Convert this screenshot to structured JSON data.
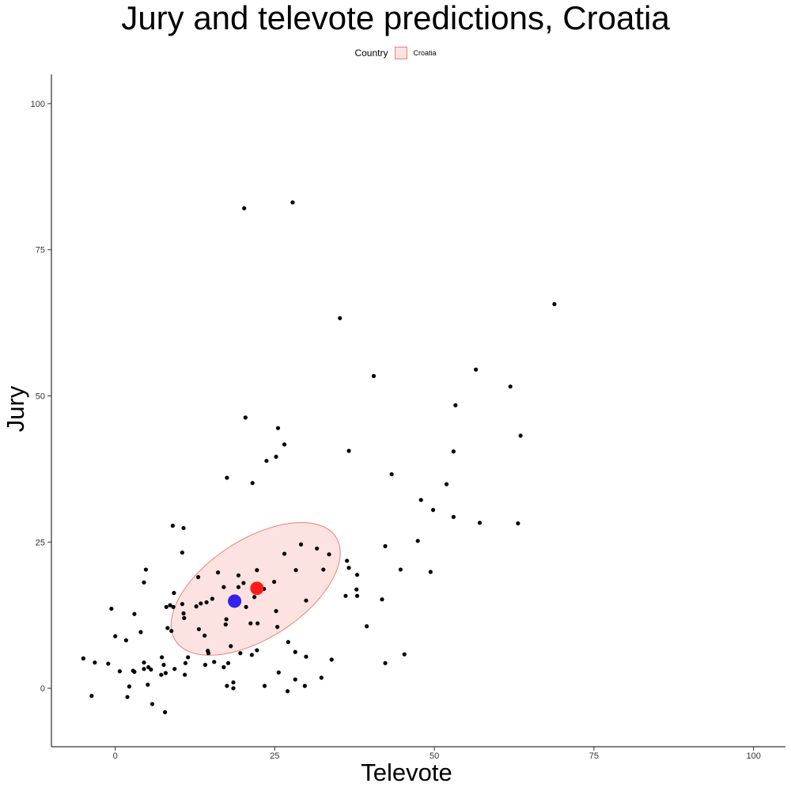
{
  "chart_data": {
    "type": "scatter",
    "title": "Jury and televote predictions, Croatia",
    "xlabel": "Televote",
    "ylabel": "Jury",
    "xlim": [
      -10,
      105
    ],
    "ylim": [
      -10,
      105
    ],
    "x_ticks": [
      0,
      25,
      50,
      75,
      100
    ],
    "y_ticks": [
      0,
      25,
      50,
      75,
      100
    ],
    "grid": false,
    "legend": {
      "title": "Country",
      "placement": "top",
      "entries": [
        "Croatia"
      ]
    },
    "colors": {
      "ellipse_fill": "#fde2e2",
      "ellipse_stroke": "#f08070",
      "points": "#000000",
      "highlight_red": "#ff1a1a",
      "highlight_blue": "#3322ee"
    },
    "ellipse": {
      "center": [
        22,
        17
      ],
      "semi_major": 15.4,
      "semi_minor": 8.2,
      "angle_deg": 37
    },
    "highlight_points": [
      {
        "x": 22.2,
        "y": 17.1,
        "color": "#ff1a1a"
      },
      {
        "x": 18.7,
        "y": 14.9,
        "color": "#3322ee"
      }
    ],
    "points": [
      [
        20.2,
        82.1
      ],
      [
        27.8,
        83.1
      ],
      [
        35.2,
        63.3
      ],
      [
        68.8,
        65.7
      ],
      [
        40.5,
        53.4
      ],
      [
        56.5,
        54.5
      ],
      [
        61.9,
        51.6
      ],
      [
        53.3,
        48.4
      ],
      [
        63.5,
        43.2
      ],
      [
        20.4,
        46.3
      ],
      [
        25.5,
        44.5
      ],
      [
        26.5,
        41.7
      ],
      [
        23.7,
        38.9
      ],
      [
        25.2,
        39.6
      ],
      [
        36.6,
        40.6
      ],
      [
        53.0,
        40.5
      ],
      [
        17.5,
        36.0
      ],
      [
        21.5,
        35.1
      ],
      [
        43.3,
        36.6
      ],
      [
        51.9,
        34.9
      ],
      [
        47.9,
        32.2
      ],
      [
        49.8,
        30.5
      ],
      [
        53.0,
        29.3
      ],
      [
        57.1,
        28.3
      ],
      [
        63.1,
        28.2
      ],
      [
        9.0,
        27.8
      ],
      [
        10.7,
        27.4
      ],
      [
        47.4,
        25.2
      ],
      [
        42.3,
        24.3
      ],
      [
        29.1,
        24.6
      ],
      [
        31.6,
        23.9
      ],
      [
        26.5,
        23.0
      ],
      [
        33.5,
        22.9
      ],
      [
        10.5,
        23.2
      ],
      [
        36.3,
        21.8
      ],
      [
        36.6,
        20.6
      ],
      [
        37.9,
        19.4
      ],
      [
        44.7,
        20.3
      ],
      [
        49.4,
        19.9
      ],
      [
        32.6,
        20.3
      ],
      [
        28.3,
        20.2
      ],
      [
        22.2,
        20.2
      ],
      [
        4.8,
        20.3
      ],
      [
        16.1,
        19.8
      ],
      [
        19.3,
        19.3
      ],
      [
        13.0,
        19.0
      ],
      [
        20.1,
        18.0
      ],
      [
        24.9,
        18.2
      ],
      [
        4.5,
        18.1
      ],
      [
        19.3,
        17.3
      ],
      [
        23.3,
        17.0
      ],
      [
        14.3,
        14.7
      ],
      [
        13.4,
        14.5
      ],
      [
        17.0,
        17.3
      ],
      [
        37.8,
        16.9
      ],
      [
        9.2,
        16.3
      ],
      [
        -0.6,
        13.6
      ],
      [
        3.0,
        12.7
      ],
      [
        10.5,
        14.4
      ],
      [
        12.7,
        14.0
      ],
      [
        15.2,
        15.3
      ],
      [
        21.8,
        15.6
      ],
      [
        36.1,
        15.8
      ],
      [
        37.9,
        15.8
      ],
      [
        41.8,
        15.2
      ],
      [
        29.9,
        15.0
      ],
      [
        8.0,
        13.9
      ],
      [
        8.6,
        14.2
      ],
      [
        9.1,
        13.9
      ],
      [
        10.7,
        12.8
      ],
      [
        10.8,
        12.0
      ],
      [
        20.5,
        13.9
      ],
      [
        25.2,
        13.2
      ],
      [
        17.4,
        11.8
      ],
      [
        17.3,
        10.9
      ],
      [
        21.2,
        11.1
      ],
      [
        22.3,
        11.1
      ],
      [
        8.2,
        10.3
      ],
      [
        8.8,
        9.8
      ],
      [
        13.1,
        10.1
      ],
      [
        14.0,
        9.0
      ],
      [
        0.0,
        8.9
      ],
      [
        1.7,
        8.2
      ],
      [
        4.0,
        9.6
      ],
      [
        39.4,
        10.6
      ],
      [
        25.4,
        10.5
      ],
      [
        27.1,
        7.9
      ],
      [
        18.1,
        7.2
      ],
      [
        14.5,
        6.4
      ],
      [
        19.6,
        6.0
      ],
      [
        14.6,
        6.0
      ],
      [
        11.4,
        5.3
      ],
      [
        21.4,
        5.7
      ],
      [
        22.2,
        6.5
      ],
      [
        28.2,
        6.2
      ],
      [
        29.9,
        5.4
      ],
      [
        45.3,
        5.8
      ],
      [
        33.9,
        4.9
      ],
      [
        42.3,
        4.3
      ],
      [
        -5.0,
        5.1
      ],
      [
        -3.2,
        4.4
      ],
      [
        -1.1,
        4.2
      ],
      [
        11.0,
        4.3
      ],
      [
        15.5,
        4.5
      ],
      [
        7.3,
        5.3
      ],
      [
        4.5,
        4.4
      ],
      [
        4.5,
        3.3
      ],
      [
        5.2,
        3.6
      ],
      [
        5.6,
        3.2
      ],
      [
        7.6,
        4.0
      ],
      [
        9.3,
        3.3
      ],
      [
        14.1,
        4.0
      ],
      [
        17.0,
        3.6
      ],
      [
        17.7,
        4.3
      ],
      [
        0.7,
        2.9
      ],
      [
        2.8,
        3.0
      ],
      [
        3.0,
        2.8
      ],
      [
        7.2,
        2.3
      ],
      [
        7.9,
        2.6
      ],
      [
        10.9,
        2.3
      ],
      [
        25.6,
        2.7
      ],
      [
        32.3,
        1.8
      ],
      [
        28.2,
        1.5
      ],
      [
        18.5,
        1.0
      ],
      [
        2.2,
        0.3
      ],
      [
        5.1,
        0.6
      ],
      [
        17.5,
        0.4
      ],
      [
        18.5,
        0.0
      ],
      [
        23.4,
        0.4
      ],
      [
        29.7,
        0.4
      ],
      [
        27.0,
        -0.5
      ],
      [
        -3.7,
        -1.3
      ],
      [
        1.9,
        -1.5
      ],
      [
        5.8,
        -2.7
      ],
      [
        7.8,
        -4.1
      ]
    ]
  }
}
